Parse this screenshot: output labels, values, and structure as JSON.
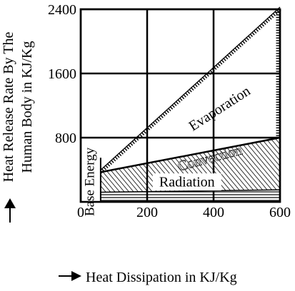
{
  "chart_data": {
    "type": "area",
    "title": "",
    "xlabel": "Heat Dissipation in KJ/Kg",
    "ylabel": "Heat Release Rate By The Human Body in KJ/Kg",
    "ylabel_line1": "Heat Release Rate By The",
    "ylabel_line2": "Human Body in KJ/Kg",
    "xlim": [
      0,
      600
    ],
    "ylim": [
      0,
      2400
    ],
    "x_ticks": [
      0,
      200,
      400,
      600
    ],
    "y_ticks": [
      800,
      1600,
      2400
    ],
    "grid": true,
    "x": [
      60,
      600
    ],
    "series": [
      {
        "name": "Radiation",
        "lower": [
          0,
          0
        ],
        "upper": [
          120,
          150
        ],
        "pattern": "horizontal-lines"
      },
      {
        "name": "Convection",
        "lower": [
          120,
          150
        ],
        "upper": [
          370,
          800
        ],
        "pattern": "diagonal-hatch"
      },
      {
        "name": "Evaporation",
        "lower": [
          370,
          800
        ],
        "upper": [
          370,
          2400
        ],
        "pattern": "dotted-edge"
      }
    ],
    "base_energy": {
      "label": "Base Energy",
      "x_from": 0,
      "x_to": 60,
      "y_to": 550
    },
    "annotations": [
      {
        "text": "Evaporation",
        "x": 420,
        "y": 1150,
        "angle": -33
      },
      {
        "text": "Convection",
        "x": 390,
        "y": 530,
        "angle": -15
      },
      {
        "text": "Radiation",
        "x": 320,
        "y": 230,
        "angle": 0
      },
      {
        "text": "Base Energy",
        "x": 30,
        "y": 250,
        "angle": -90
      }
    ]
  }
}
